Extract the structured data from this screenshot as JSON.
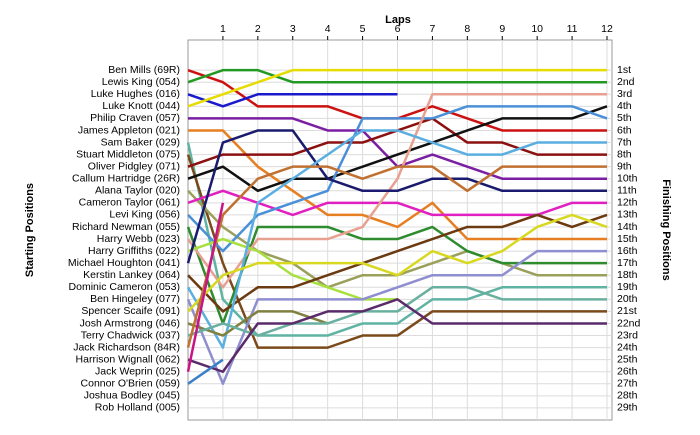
{
  "chart_data": {
    "type": "line",
    "title": "Laps",
    "y_label": "Starting Positions",
    "y2_label": "Finishing Positions",
    "x": [
      0,
      1,
      2,
      3,
      4,
      5,
      6,
      7,
      8,
      9,
      10,
      11,
      12
    ],
    "xlim": [
      0,
      12
    ],
    "xticks": [
      1,
      2,
      3,
      4,
      5,
      6,
      7,
      8,
      9,
      10,
      11,
      12
    ],
    "ylim": [
      -1.5,
      30
    ],
    "y_inverted": true,
    "grid": true,
    "y2ticks": [
      {
        "value": 1,
        "label": "1st"
      },
      {
        "value": 2,
        "label": "2nd"
      },
      {
        "value": 3,
        "label": "3rd"
      },
      {
        "value": 4,
        "label": "4th"
      },
      {
        "value": 5,
        "label": "5th"
      },
      {
        "value": 6,
        "label": "6th"
      },
      {
        "value": 7,
        "label": "7th"
      },
      {
        "value": 8,
        "label": "8th"
      },
      {
        "value": 9,
        "label": "9th"
      },
      {
        "value": 10,
        "label": "10th"
      },
      {
        "value": 11,
        "label": "11th"
      },
      {
        "value": 12,
        "label": "12th"
      },
      {
        "value": 13,
        "label": "13th"
      },
      {
        "value": 14,
        "label": "14th"
      },
      {
        "value": 15,
        "label": "15th"
      },
      {
        "value": 16,
        "label": "16th"
      },
      {
        "value": 17,
        "label": "17th"
      },
      {
        "value": 18,
        "label": "18th"
      },
      {
        "value": 19,
        "label": "19th"
      },
      {
        "value": 20,
        "label": "20th"
      },
      {
        "value": 21,
        "label": "21st"
      },
      {
        "value": 22,
        "label": "22nd"
      },
      {
        "value": 23,
        "label": "23rd"
      },
      {
        "value": 24,
        "label": "24th"
      },
      {
        "value": 25,
        "label": "25th"
      },
      {
        "value": 26,
        "label": "26th"
      },
      {
        "value": 27,
        "label": "27th"
      },
      {
        "value": 28,
        "label": "28th"
      },
      {
        "value": 29,
        "label": "29th"
      }
    ],
    "series": [
      {
        "name": "Ben Mills (69R)",
        "color": "#cc1111",
        "values": [
          1,
          2,
          4,
          4,
          4,
          5,
          5,
          4,
          5,
          6,
          6,
          6,
          6
        ]
      },
      {
        "name": "Lewis King (054)",
        "color": "#229922",
        "values": [
          2,
          1,
          1,
          2,
          2,
          2,
          2,
          2,
          2,
          2,
          2,
          2,
          2
        ]
      },
      {
        "name": "Luke Hughes (016)",
        "color": "#1a1acc",
        "values": [
          3,
          4,
          3,
          3,
          3,
          3,
          3,
          null,
          null,
          null,
          null,
          null,
          null
        ]
      },
      {
        "name": "Luke Knott (044)",
        "color": "#e6dc00",
        "values": [
          4,
          3,
          2,
          1,
          1,
          1,
          1,
          1,
          1,
          1,
          1,
          1,
          1
        ]
      },
      {
        "name": "Philip Craven (057)",
        "color": "#7b1fa2",
        "values": [
          5,
          5,
          5,
          5,
          6,
          6,
          9,
          8,
          9,
          10,
          10,
          10,
          10
        ]
      },
      {
        "name": "James Appleton (021)",
        "color": "#e67e22",
        "values": [
          6,
          6,
          9,
          11,
          13,
          13,
          14,
          12,
          15,
          15,
          15,
          15,
          15
        ]
      },
      {
        "name": "Sam Baker (029)",
        "color": "#5fb3a3",
        "values": [
          7,
          20,
          23,
          23,
          23,
          22,
          22,
          20,
          20,
          19,
          19,
          19,
          19
        ]
      },
      {
        "name": "Stuart Middleton (075)",
        "color": "#7a4a1a",
        "values": [
          8,
          17,
          24,
          24,
          24,
          23,
          23,
          21,
          21,
          21,
          21,
          21,
          21
        ]
      },
      {
        "name": "Oliver Pidgley (071)",
        "color": "#8b1010",
        "values": [
          9,
          8,
          8,
          8,
          7,
          7,
          6,
          5,
          7,
          7,
          8,
          8,
          8
        ]
      },
      {
        "name": "Callum Hartridge (26R)",
        "color": "#111111",
        "values": [
          10,
          9,
          11,
          10,
          10,
          9,
          8,
          7,
          6,
          5,
          5,
          5,
          4
        ]
      },
      {
        "name": "Alana Taylor (020)",
        "color": "#9aa05a",
        "values": [
          11,
          14,
          16,
          17,
          19,
          18,
          18,
          17,
          16,
          17,
          18,
          18,
          18
        ]
      },
      {
        "name": "Cameron Taylor (061)",
        "color": "#e020c0",
        "values": [
          12,
          11,
          12,
          13,
          12,
          12,
          12,
          13,
          13,
          13,
          13,
          12,
          12
        ]
      },
      {
        "name": "Levi King (056)",
        "color": "#4a90d9",
        "values": [
          13,
          16,
          13,
          12,
          11,
          5,
          5,
          5,
          4,
          4,
          4,
          4,
          5
        ]
      },
      {
        "name": "Richard Newman (055)",
        "color": "#2e8b2e",
        "values": [
          14,
          22,
          14,
          14,
          14,
          15,
          15,
          14,
          16,
          17,
          17,
          17,
          17
        ]
      },
      {
        "name": "Harry Webb (023)",
        "color": "#e8a090",
        "values": [
          15,
          19,
          15,
          15,
          15,
          14,
          10,
          3,
          3,
          3,
          3,
          3,
          3
        ]
      },
      {
        "name": "Harry Griffiths (022)",
        "color": "#a8e040",
        "values": [
          16,
          15,
          16,
          18,
          19,
          20,
          20,
          null,
          null,
          null,
          null,
          null,
          null
        ]
      },
      {
        "name": "Michael Houghton (041)",
        "color": "#1a1a6e",
        "values": [
          17,
          7,
          6,
          6,
          10,
          11,
          11,
          10,
          10,
          11,
          11,
          11,
          11
        ]
      },
      {
        "name": "Kerstin Lankey (064)",
        "color": "#6b3a10",
        "values": [
          18,
          21,
          19,
          19,
          18,
          17,
          16,
          15,
          14,
          14,
          13,
          14,
          13
        ]
      },
      {
        "name": "Dominic Cameron (053)",
        "color": "#5aaee0",
        "values": [
          19,
          24,
          12,
          10,
          8,
          6,
          6,
          7,
          8,
          8,
          7,
          7,
          7
        ]
      },
      {
        "name": "Ben Hingeley (077)",
        "color": "#8e8ed0",
        "values": [
          20,
          27,
          20,
          20,
          20,
          20,
          19,
          18,
          18,
          18,
          16,
          16,
          16
        ]
      },
      {
        "name": "Spencer Scaife (091)",
        "color": "#d8d820",
        "values": [
          21,
          18,
          17,
          17,
          17,
          17,
          18,
          16,
          17,
          16,
          14,
          13,
          14
        ]
      },
      {
        "name": "Josh Armstrong (046)",
        "color": "#808040",
        "values": [
          22,
          23,
          21,
          21,
          22,
          null,
          null,
          null,
          null,
          null,
          null,
          null,
          null
        ]
      },
      {
        "name": "Terry Chadwick (037)",
        "color": "#6ab0a0",
        "values": [
          23,
          22,
          23,
          22,
          22,
          21,
          21,
          19,
          19,
          20,
          20,
          20,
          20
        ]
      },
      {
        "name": "Jack Richardson (84R)",
        "color": "#c07030",
        "values": [
          24,
          13,
          10,
          9,
          9,
          10,
          9,
          9,
          11,
          9,
          9,
          9,
          9
        ]
      },
      {
        "name": "Harrison Wignall (062)",
        "color": "#5a2a6a",
        "values": [
          25,
          26,
          22,
          22,
          21,
          21,
          20,
          22,
          22,
          22,
          22,
          22,
          22
        ]
      },
      {
        "name": "Jack Weprin (025)",
        "color": "#c71585",
        "values": [
          26,
          12,
          null,
          null,
          null,
          null,
          null,
          null,
          null,
          null,
          null,
          null,
          null
        ]
      },
      {
        "name": "Connor O'Brien (059)",
        "color": "#3a80c8",
        "values": [
          27,
          25,
          null,
          null,
          null,
          null,
          null,
          null,
          null,
          null,
          null,
          null,
          null
        ]
      },
      {
        "name": "Joshua Bodley (045)",
        "color": "#999999",
        "values": [
          null,
          null,
          null,
          null,
          null,
          null,
          null,
          null,
          null,
          null,
          null,
          null,
          null
        ]
      },
      {
        "name": "Rob Holland (005)",
        "color": "#999999",
        "values": [
          null,
          null,
          null,
          null,
          null,
          null,
          null,
          null,
          null,
          null,
          null,
          null,
          null
        ]
      }
    ]
  }
}
